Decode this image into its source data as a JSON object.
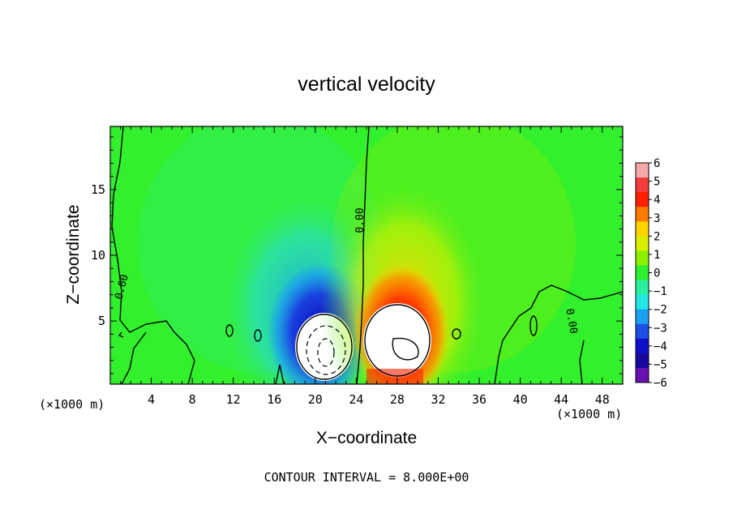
{
  "chart_data": {
    "type": "heatmap",
    "title": "vertical velocity",
    "xlabel": "X−coordinate",
    "ylabel": "Z−coordinate",
    "x_unit_left": "(×1000 m)",
    "x_unit_right": "(×1000 m)",
    "xlim": [
      0,
      50
    ],
    "ylim": [
      0.2,
      19.8
    ],
    "x_ticks": [
      4,
      8,
      12,
      16,
      20,
      24,
      28,
      32,
      36,
      40,
      44,
      48
    ],
    "y_ticks": [
      5,
      10,
      15
    ],
    "colorbar": {
      "ticks": [
        6,
        5,
        4,
        3,
        2,
        1,
        0,
        -1,
        -2,
        -3,
        -4,
        -5,
        -6
      ],
      "tick_labels": [
        "6",
        "5",
        "4",
        "3",
        "2",
        "1",
        "0",
        "−1",
        "−2",
        "−3",
        "−4",
        "−5",
        "−6"
      ],
      "colors": [
        "#f7a8a8",
        "#f43c3c",
        "#ff2000",
        "#ff7a00",
        "#ffd400",
        "#d8f000",
        "#8df000",
        "#2ef02e",
        "#28f0a0",
        "#20e6e6",
        "#1aa0f0",
        "#1a50e6",
        "#1010c8",
        "#1808a0",
        "#6a10b0"
      ]
    },
    "features": [
      {
        "name": "downdraft",
        "x": 20.5,
        "z": 3.5,
        "w": -6,
        "color": "#1010c8"
      },
      {
        "name": "updraft",
        "x": 28.5,
        "z": 3.5,
        "w": 6,
        "color": "#ff2000"
      }
    ],
    "contour_labels": [
      "0.00",
      "0.00",
      "0.00"
    ],
    "footer": "CONTOUR INTERVAL = 8.000E+00"
  }
}
